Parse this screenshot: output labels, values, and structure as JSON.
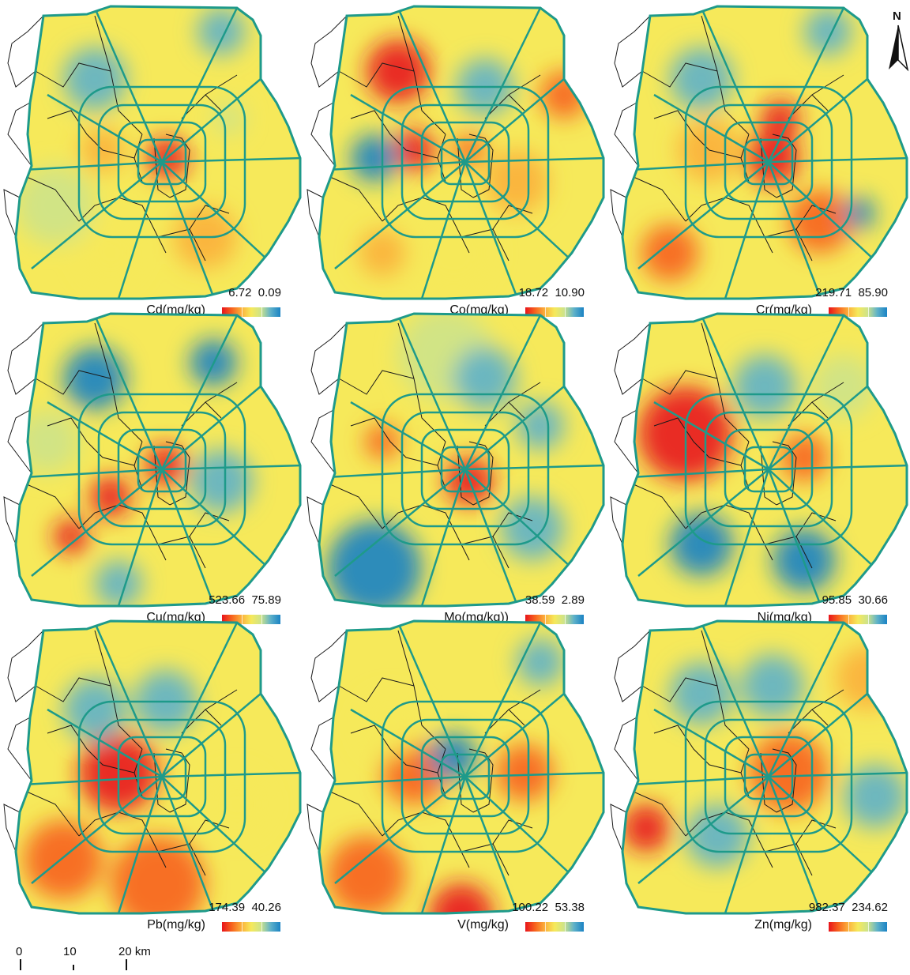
{
  "panels": [
    {
      "element": "Cd",
      "label": "Cd(mg/kg)",
      "max": "6.72",
      "min": "0.09"
    },
    {
      "element": "Co",
      "label": "Co(mg/kg)",
      "max": "18.72",
      "min": "10.90"
    },
    {
      "element": "Cr",
      "label": "Cr(mg/kg)",
      "max": "219.71",
      "min": "85.90"
    },
    {
      "element": "Cu",
      "label": "Cu(mg/kg)",
      "max": "523.66",
      "min": "75.89"
    },
    {
      "element": "Mo",
      "label": "Mo(mg/kg))",
      "max": "38.59",
      "min": "2.89"
    },
    {
      "element": "Ni",
      "label": "Ni(mg/kg)",
      "max": "95.85",
      "min": "30.66"
    },
    {
      "element": "Pb",
      "label": "Pb(mg/kg)",
      "max": "174.39",
      "min": "40.26"
    },
    {
      "element": "V",
      "label": "V(mg/kg)",
      "max": "100.22",
      "min": "53.38"
    },
    {
      "element": "Zn",
      "label": "Zn(mg/kg)",
      "max": "982.37",
      "min": "234.62"
    }
  ],
  "north_arrow": {
    "label": "N"
  },
  "scale_bar": {
    "labels": [
      "0",
      "10",
      "20 km"
    ]
  },
  "colors": {
    "ramp": [
      "#e8141c",
      "#f7631e",
      "#fbb03b",
      "#f6e95a",
      "#cde38a",
      "#5eb1c9",
      "#1a82c4"
    ],
    "ring_roads": "#1e9a8a",
    "district_boundaries": "#1a1a1a",
    "outer_boundary_fill": "#ffffff"
  }
}
